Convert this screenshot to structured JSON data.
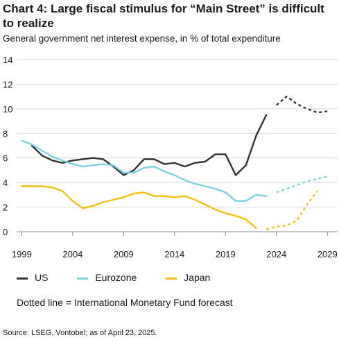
{
  "title": "Chart 4: Large fiscal stimulus for “Main Street” is difficult to realize",
  "subtitle": "General government net interest expense, in % of total expenditure",
  "note": "Dotted line = International Monetary Fund forecast",
  "source": "Source: LSEG, Vontobel; as of April 23, 2025.",
  "chart_data": {
    "type": "line",
    "title": "Chart 4: Large fiscal stimulus for “Main Street” is difficult to realize",
    "ylabel": "General government net interest expense, in % of total expenditure",
    "xlabel": "",
    "xlim": [
      1999,
      2030
    ],
    "ylim": [
      0,
      14
    ],
    "x_ticks": [
      1999,
      2004,
      2009,
      2014,
      2019,
      2024,
      2029
    ],
    "y_ticks": [
      0,
      2,
      4,
      6,
      8,
      10,
      12,
      14
    ],
    "grid": "horizontal",
    "legend": "bottom",
    "series": [
      {
        "name": "US",
        "color": "#333333",
        "actual": [
          [
            2000,
            7.0
          ],
          [
            2001,
            6.2
          ],
          [
            2002,
            5.8
          ],
          [
            2003,
            5.6
          ],
          [
            2004,
            5.8
          ],
          [
            2005,
            5.9
          ],
          [
            2006,
            6.0
          ],
          [
            2007,
            5.9
          ],
          [
            2008,
            5.3
          ],
          [
            2009,
            4.6
          ],
          [
            2010,
            5.0
          ],
          [
            2011,
            5.9
          ],
          [
            2012,
            5.9
          ],
          [
            2013,
            5.5
          ],
          [
            2014,
            5.6
          ],
          [
            2015,
            5.3
          ],
          [
            2016,
            5.6
          ],
          [
            2017,
            5.7
          ],
          [
            2018,
            6.3
          ],
          [
            2019,
            6.3
          ],
          [
            2020,
            4.6
          ],
          [
            2021,
            5.4
          ],
          [
            2022,
            7.8
          ],
          [
            2023,
            9.5
          ]
        ],
        "forecast": [
          [
            2024,
            10.3
          ],
          [
            2025,
            11.0
          ],
          [
            2026,
            10.4
          ],
          [
            2027,
            10.0
          ],
          [
            2028,
            9.7
          ],
          [
            2029,
            9.8
          ]
        ]
      },
      {
        "name": "Eurozone",
        "color": "#7dd3e0",
        "actual": [
          [
            1999,
            7.4
          ],
          [
            2000,
            7.1
          ],
          [
            2001,
            6.6
          ],
          [
            2002,
            6.1
          ],
          [
            2003,
            5.8
          ],
          [
            2004,
            5.5
          ],
          [
            2005,
            5.3
          ],
          [
            2006,
            5.4
          ],
          [
            2007,
            5.5
          ],
          [
            2008,
            5.4
          ],
          [
            2009,
            4.8
          ],
          [
            2010,
            4.8
          ],
          [
            2011,
            5.2
          ],
          [
            2012,
            5.3
          ],
          [
            2013,
            4.9
          ],
          [
            2014,
            4.6
          ],
          [
            2015,
            4.2
          ],
          [
            2016,
            3.9
          ],
          [
            2017,
            3.7
          ],
          [
            2018,
            3.5
          ],
          [
            2019,
            3.2
          ],
          [
            2020,
            2.5
          ],
          [
            2021,
            2.5
          ],
          [
            2022,
            3.0
          ],
          [
            2023,
            2.9
          ]
        ],
        "forecast": [
          [
            2024,
            3.2
          ],
          [
            2025,
            3.5
          ],
          [
            2026,
            3.8
          ],
          [
            2027,
            4.1
          ],
          [
            2028,
            4.3
          ],
          [
            2029,
            4.5
          ]
        ]
      },
      {
        "name": "Japan",
        "color": "#f2c40f",
        "actual": [
          [
            1999,
            3.7
          ],
          [
            2000,
            3.7
          ],
          [
            2001,
            3.7
          ],
          [
            2002,
            3.6
          ],
          [
            2003,
            3.3
          ],
          [
            2004,
            2.5
          ],
          [
            2005,
            1.9
          ],
          [
            2006,
            2.1
          ],
          [
            2007,
            2.4
          ],
          [
            2008,
            2.6
          ],
          [
            2009,
            2.8
          ],
          [
            2010,
            3.1
          ],
          [
            2011,
            3.2
          ],
          [
            2012,
            2.9
          ],
          [
            2013,
            2.9
          ],
          [
            2014,
            2.8
          ],
          [
            2015,
            2.9
          ],
          [
            2016,
            2.6
          ],
          [
            2017,
            2.2
          ],
          [
            2018,
            1.8
          ],
          [
            2019,
            1.5
          ],
          [
            2020,
            1.3
          ],
          [
            2021,
            1.0
          ],
          [
            2022,
            0.3
          ]
        ],
        "forecast": [
          [
            2023,
            0.2
          ],
          [
            2024,
            0.4
          ],
          [
            2025,
            0.5
          ],
          [
            2026,
            0.9
          ],
          [
            2027,
            2.2
          ],
          [
            2028,
            3.3
          ]
        ]
      }
    ]
  }
}
